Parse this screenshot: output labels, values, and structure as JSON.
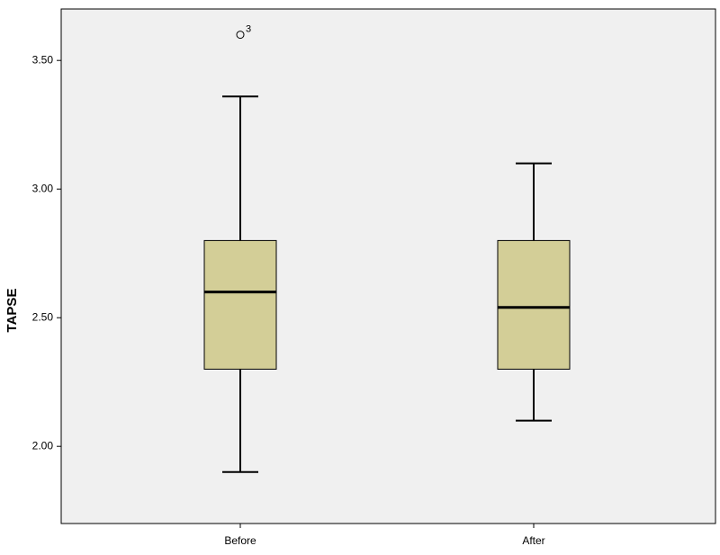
{
  "chart_data": {
    "type": "boxplot",
    "y_label": "TAPSE",
    "categories": [
      "Before",
      "After"
    ],
    "boxes": [
      {
        "min": 1.9,
        "q1": 2.3,
        "median": 2.6,
        "q3": 2.8,
        "max": 3.36,
        "outliers": [
          {
            "value": 3.6,
            "case": "3"
          }
        ]
      },
      {
        "min": 2.1,
        "q1": 2.3,
        "median": 2.54,
        "q3": 2.8,
        "max": 3.1,
        "outliers": []
      }
    ],
    "color": "#d3ce97",
    "ylim": [
      1.7,
      3.7
    ],
    "yticks": [
      {
        "value": 2.0,
        "label": "2.00"
      },
      {
        "value": 2.5,
        "label": "2.50"
      },
      {
        "value": 3.0,
        "label": "3.00"
      },
      {
        "value": 3.5,
        "label": "3.50"
      }
    ]
  }
}
